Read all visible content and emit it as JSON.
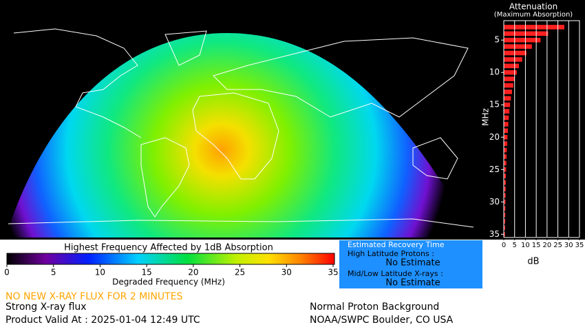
{
  "chart_data": {
    "type": "bar",
    "orientation": "horizontal",
    "title": "Attenuation",
    "subtitle": "(Maximum Absorption)",
    "ylabel": "MHz",
    "xlabel": "dB",
    "color": "#ff2020",
    "grid": true,
    "y": [
      3,
      4,
      5,
      6,
      7,
      8,
      9,
      10,
      11,
      12,
      13,
      14,
      15,
      16,
      17,
      18,
      19,
      20,
      21,
      22,
      23,
      24,
      25,
      26,
      27,
      28,
      29,
      30,
      31,
      32,
      33,
      34,
      35
    ],
    "values": [
      28,
      20.5,
      17,
      13,
      10.5,
      8.5,
      7,
      6,
      5,
      4.4,
      3.8,
      3.3,
      2.9,
      2.6,
      2.3,
      2.1,
      1.9,
      1.7,
      1.6,
      1.4,
      1.3,
      1.2,
      1.1,
      1,
      0.95,
      0.9,
      0.85,
      0.8,
      0.75,
      0.7,
      0.65,
      0.6,
      0.55
    ],
    "xlim": [
      0,
      35
    ],
    "xticks": [
      0,
      5,
      10,
      15,
      20,
      25,
      30,
      35
    ],
    "ylim": [
      2,
      35.5
    ],
    "yticks": [
      5,
      10,
      15,
      20,
      25,
      30,
      35
    ]
  },
  "colorbar": {
    "title": "Highest Frequency Affected by 1dB Absorption",
    "label": "Degraded Frequency (MHz)",
    "lim": [
      0,
      35
    ],
    "ticks": [
      0,
      5,
      10,
      15,
      20,
      25,
      30,
      35
    ]
  },
  "status": {
    "warning": "NO NEW X-RAY FLUX FOR 2 MINUTES",
    "flux": "Strong X-ray flux",
    "valid": "Product Valid At : 2025-01-04 12:49 UTC",
    "proton": "Normal Proton Background",
    "source": "NOAA/SWPC Boulder, CO USA"
  },
  "recovery": {
    "title": "Estimated Recovery Time",
    "high_label": "High Latitude Protons :",
    "high_value": "No Estimate",
    "low_label": "Mid/Low Latitude X-rays :",
    "low_value": "No Estimate"
  }
}
